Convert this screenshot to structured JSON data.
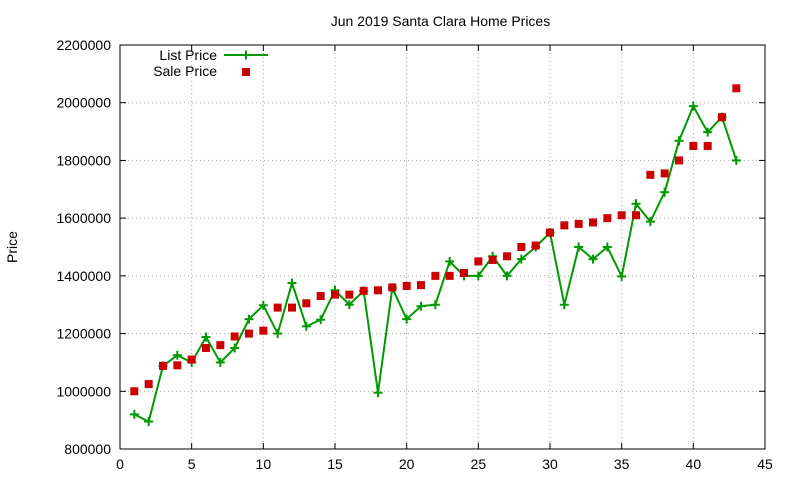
{
  "chart_data": {
    "type": "line",
    "title": "Jun 2019 Santa Clara Home Prices",
    "xlabel": "",
    "ylabel": "Price",
    "xlim": [
      0,
      45
    ],
    "ylim": [
      800000,
      2200000
    ],
    "x_ticks": [
      0,
      5,
      10,
      15,
      20,
      25,
      30,
      35,
      40,
      45
    ],
    "y_ticks": [
      800000,
      1000000,
      1200000,
      1400000,
      1600000,
      1800000,
      2000000,
      2200000
    ],
    "x_tick_labels": [
      "0",
      "5",
      "10",
      "15",
      "20",
      "25",
      "30",
      "35",
      "40",
      "45"
    ],
    "y_tick_labels": [
      "800000",
      "1000000",
      "1200000",
      "1400000",
      "1600000",
      "1800000",
      "2000000",
      "2200000"
    ],
    "grid": true,
    "legend_position": "top-left",
    "series": [
      {
        "name": "List Price",
        "style": "linespoints",
        "marker": "plus",
        "color": "#009900",
        "x": [
          1,
          2,
          3,
          4,
          5,
          6,
          7,
          8,
          9,
          10,
          11,
          12,
          13,
          14,
          15,
          16,
          17,
          18,
          19,
          20,
          21,
          22,
          23,
          24,
          25,
          26,
          27,
          28,
          29,
          30,
          31,
          32,
          33,
          34,
          35,
          36,
          37,
          38,
          39,
          40,
          41,
          42,
          43
        ],
        "y": [
          920000,
          895000,
          1088000,
          1125000,
          1100000,
          1188000,
          1100000,
          1150000,
          1250000,
          1298000,
          1200000,
          1375000,
          1225000,
          1248000,
          1350000,
          1300000,
          1348000,
          995000,
          1358000,
          1250000,
          1295000,
          1300000,
          1450000,
          1400000,
          1400000,
          1468000,
          1400000,
          1458000,
          1500000,
          1550000,
          1300000,
          1500000,
          1458000,
          1500000,
          1398000,
          1650000,
          1588000,
          1690000,
          1868000,
          1988000,
          1898000,
          1950000,
          1800000
        ]
      },
      {
        "name": "Sale Price",
        "style": "points",
        "marker": "square",
        "color": "#cc0000",
        "x": [
          1,
          2,
          3,
          4,
          5,
          6,
          7,
          8,
          9,
          10,
          11,
          12,
          13,
          14,
          15,
          16,
          17,
          18,
          19,
          20,
          21,
          22,
          23,
          24,
          25,
          26,
          27,
          28,
          29,
          30,
          31,
          32,
          33,
          34,
          35,
          36,
          37,
          38,
          39,
          40,
          41,
          42,
          43
        ],
        "y": [
          1000000,
          1025000,
          1088000,
          1090000,
          1110000,
          1150000,
          1160000,
          1190000,
          1200000,
          1210000,
          1290000,
          1290000,
          1305000,
          1330000,
          1335000,
          1335000,
          1348000,
          1350000,
          1360000,
          1365000,
          1368000,
          1400000,
          1400000,
          1410000,
          1450000,
          1455000,
          1468000,
          1500000,
          1505000,
          1550000,
          1575000,
          1580000,
          1585000,
          1600000,
          1610000,
          1610000,
          1750000,
          1755000,
          1800000,
          1850000,
          1850000,
          1950000,
          2050000
        ]
      }
    ]
  }
}
